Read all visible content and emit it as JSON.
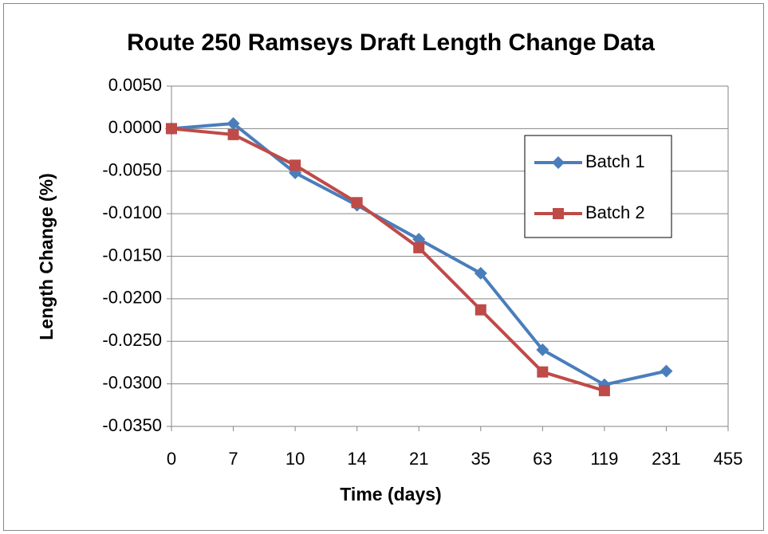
{
  "chart_data": {
    "type": "line",
    "title": "Route 250 Ramseys Draft Length Change Data",
    "x_label": "Time (days)",
    "y_label": "Length Change (%)",
    "categories": [
      "0",
      "7",
      "10",
      "14",
      "21",
      "35",
      "63",
      "119",
      "231",
      "455"
    ],
    "series": [
      {
        "name": "Batch 1",
        "color": "#4a7ebb",
        "marker": "diamond",
        "values": [
          0,
          0.0006,
          -0.0052,
          -0.009,
          -0.013,
          -0.017,
          -0.026,
          -0.0301,
          -0.0285,
          null
        ]
      },
      {
        "name": "Batch 2",
        "color": "#be4b48",
        "marker": "square",
        "values": [
          0,
          -0.0007,
          -0.0043,
          -0.0087,
          -0.014,
          -0.0213,
          -0.0286,
          -0.0308,
          null,
          null
        ]
      }
    ],
    "ylim": [
      -0.035,
      0.005
    ],
    "yticks": [
      {
        "value": 0.005,
        "label": "0.0050"
      },
      {
        "value": 0,
        "label": "0.0000"
      },
      {
        "value": -0.005,
        "label": "-0.0050"
      },
      {
        "value": -0.01,
        "label": "-0.0100"
      },
      {
        "value": -0.015,
        "label": "-0.0150"
      },
      {
        "value": -0.02,
        "label": "-0.0200"
      },
      {
        "value": -0.025,
        "label": "-0.0250"
      },
      {
        "value": -0.03,
        "label": "-0.0300"
      },
      {
        "value": -0.035,
        "label": "-0.0350"
      }
    ],
    "grid": true,
    "legend": "right"
  }
}
